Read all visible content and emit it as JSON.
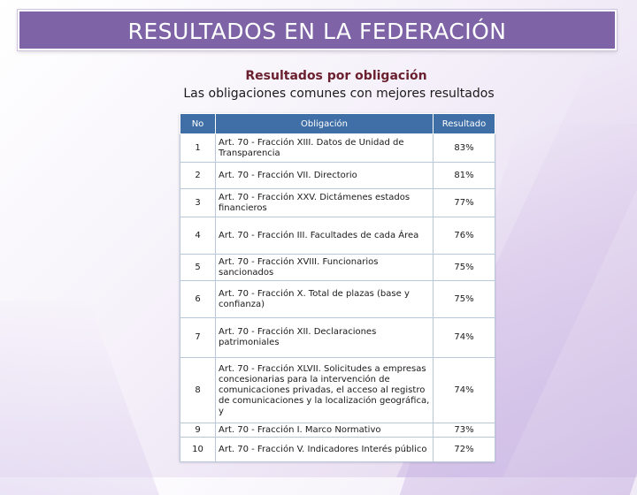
{
  "header": {
    "title": "RESULTADOS EN LA FEDERACIÓN"
  },
  "subtitle": "Resultados por obligación",
  "subtitle2": "Las obligaciones comunes con mejores resultados",
  "table": {
    "columns": [
      "No",
      "Obligación",
      "Resultado"
    ],
    "rows": [
      {
        "no": "1",
        "obligacion": "Art. 70 - Fracción XIII. Datos de Unidad de Transparencia",
        "resultado": "83%"
      },
      {
        "no": "2",
        "obligacion": "Art. 70 - Fracción VII. Directorio",
        "resultado": "81%"
      },
      {
        "no": "3",
        "obligacion": "Art. 70 - Fracción XXV. Dictámenes estados financieros",
        "resultado": "77%"
      },
      {
        "no": "4",
        "obligacion": "Art. 70 - Fracción III. Facultades de cada Área",
        "resultado": "76%"
      },
      {
        "no": "5",
        "obligacion": "Art. 70 - Fracción XVIII. Funcionarios sancionados",
        "resultado": "75%"
      },
      {
        "no": "6",
        "obligacion": "Art. 70 - Fracción X. Total de plazas (base y confianza)",
        "resultado": "75%"
      },
      {
        "no": "7",
        "obligacion": "Art. 70 - Fracción XII. Declaraciones patrimoniales",
        "resultado": "74%"
      },
      {
        "no": "8",
        "obligacion": "Art. 70 - Fracción XLVII. Solicitudes a empresas concesionarias para la intervención de comunicaciones privadas, el acceso al registro de comunicaciones y la localización geográfica, y",
        "resultado": "74%"
      },
      {
        "no": "9",
        "obligacion": "Art. 70 - Fracción I. Marco Normativo",
        "resultado": "73%"
      },
      {
        "no": "10",
        "obligacion": "Art. 70 - Fracción V. Indicadores Interés público",
        "resultado": "72%"
      }
    ]
  }
}
